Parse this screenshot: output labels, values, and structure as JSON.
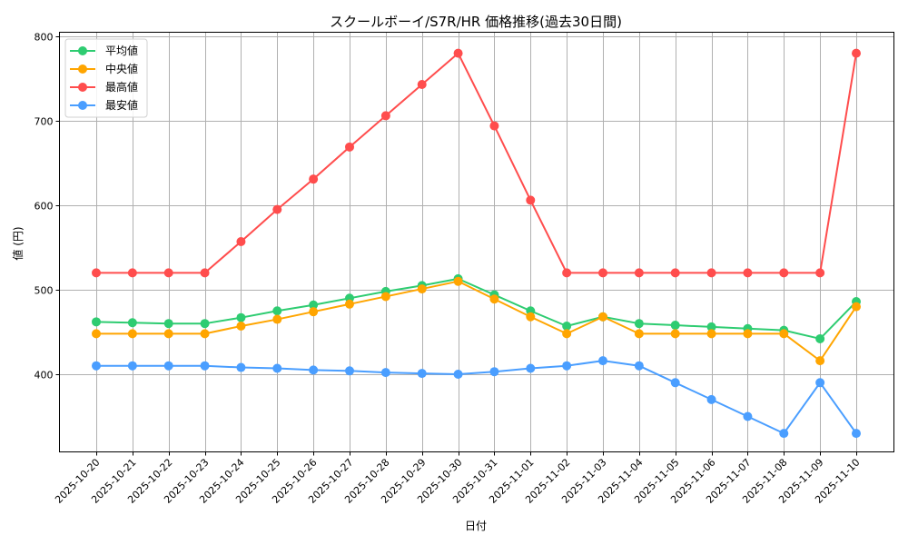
{
  "chart_data": {
    "type": "line",
    "title": "スクールボーイ/S7R/HR 価格推移(過去30日間)",
    "xlabel": "日付",
    "ylabel": "値 (円)",
    "ylim": [
      308,
      802
    ],
    "yticks": [
      400,
      500,
      600,
      700,
      800
    ],
    "grid": true,
    "legend_position": "upper left",
    "categories": [
      "2025-10-20",
      "2025-10-21",
      "2025-10-22",
      "2025-10-23",
      "2025-10-24",
      "2025-10-25",
      "2025-10-26",
      "2025-10-27",
      "2025-10-28",
      "2025-10-29",
      "2025-10-30",
      "2025-10-31",
      "2025-11-01",
      "2025-11-02",
      "2025-11-03",
      "2025-11-04",
      "2025-11-05",
      "2025-11-06",
      "2025-11-07",
      "2025-11-08",
      "2025-11-09",
      "2025-11-10"
    ],
    "series": [
      {
        "name": "平均値",
        "color": "#2ecc71",
        "values": [
          462,
          461,
          460,
          460,
          467,
          475,
          482,
          490,
          498,
          505,
          513,
          494,
          475,
          457,
          468,
          460,
          458,
          456,
          454,
          452,
          442,
          486
        ]
      },
      {
        "name": "中央値",
        "color": "#ffa500",
        "values": [
          448,
          448,
          448,
          448,
          457,
          465,
          474,
          483,
          492,
          501,
          510,
          489,
          468,
          448,
          468,
          448,
          448,
          448,
          448,
          448,
          416,
          480
        ]
      },
      {
        "name": "最高値",
        "color": "#ff4d4d",
        "values": [
          520,
          520,
          520,
          520,
          557,
          595,
          631,
          669,
          706,
          743,
          780,
          694,
          606,
          520,
          520,
          520,
          520,
          520,
          520,
          520,
          520,
          780
        ]
      },
      {
        "name": "最安値",
        "color": "#4a9eff",
        "values": [
          410,
          410,
          410,
          410,
          408,
          407,
          405,
          404,
          402,
          401,
          400,
          403,
          407,
          410,
          416,
          410,
          390,
          370,
          350,
          330,
          390,
          330
        ]
      }
    ]
  }
}
